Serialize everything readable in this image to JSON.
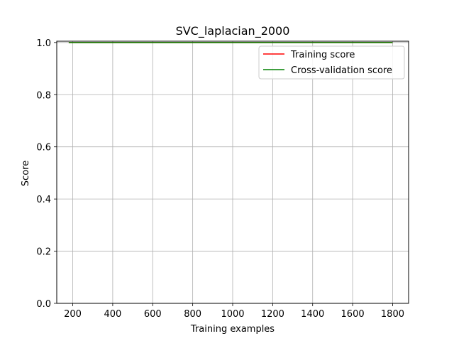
{
  "chart_data": {
    "type": "line",
    "title": "SVC_laplacian_2000",
    "xlabel": "Training examples",
    "ylabel": "Score",
    "xlim": [
      120,
      1880
    ],
    "ylim": [
      0.0,
      1.005
    ],
    "xticks": [
      200,
      400,
      600,
      800,
      1000,
      1200,
      1400,
      1600,
      1800
    ],
    "xtick_labels": [
      "200",
      "400",
      "600",
      "800",
      "1000",
      "1200",
      "1400",
      "1600",
      "1800"
    ],
    "yticks": [
      0.0,
      0.2,
      0.4,
      0.6,
      0.8,
      1.0
    ],
    "ytick_labels": [
      "0.0",
      "0.2",
      "0.4",
      "0.6",
      "0.8",
      "1.0"
    ],
    "grid": true,
    "legend_location": "top-right",
    "series": [
      {
        "name": "Training score",
        "color": "#ff0000",
        "x": [
          180,
          585,
          990,
          1395,
          1800
        ],
        "values": [
          1.0,
          1.0,
          1.0,
          1.0,
          1.0
        ]
      },
      {
        "name": "Cross-validation score",
        "color": "#008000",
        "x": [
          180,
          585,
          990,
          1395,
          1800
        ],
        "values": [
          1.0,
          1.0,
          1.0,
          1.0,
          1.0
        ]
      }
    ]
  }
}
